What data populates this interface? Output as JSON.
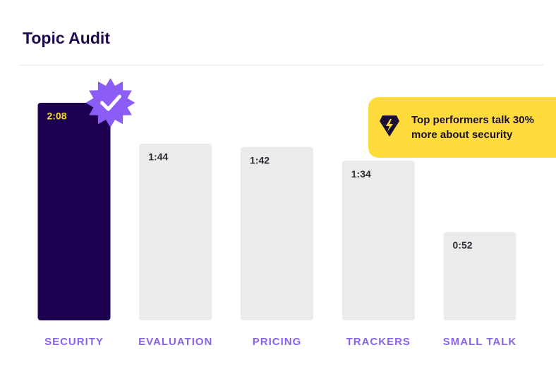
{
  "chart_data": {
    "type": "bar",
    "title": "Topic Audit",
    "annotation": "Top performers talk 30% more about security",
    "categories": [
      "SECURITY",
      "EVALUATION",
      "PRICING",
      "TRACKERS",
      "SMALL TALK"
    ],
    "values": [
      128,
      104,
      102,
      94,
      52
    ],
    "value_labels": [
      "2:08",
      "1:44",
      "1:42",
      "1:34",
      "0:52"
    ],
    "colors": [
      "#1e0050",
      "#ebebeb",
      "#ebebeb",
      "#ebebeb",
      "#ebebeb"
    ],
    "label_colors": [
      "#f5d63a",
      "#2a2a33",
      "#2a2a33",
      "#2a2a33",
      "#2a2a33"
    ],
    "category_color": "#8a63e8"
  }
}
